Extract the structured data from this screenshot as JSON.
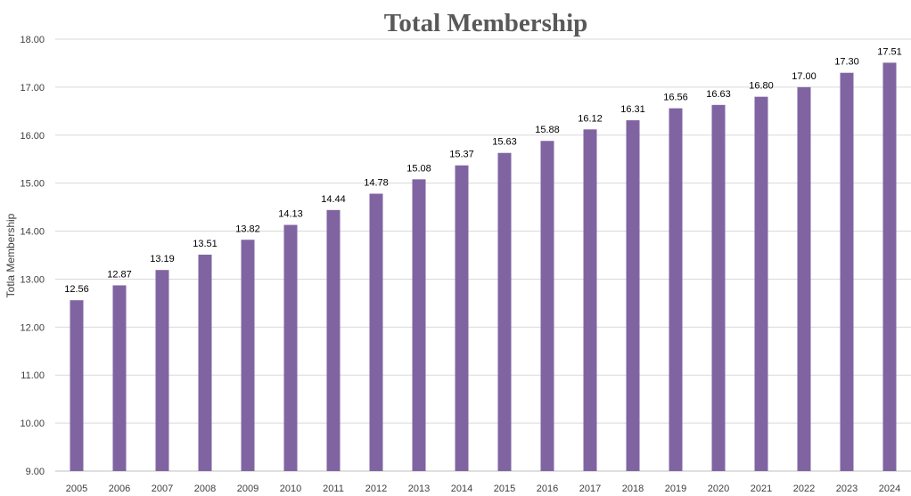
{
  "chart_data": {
    "type": "bar",
    "title": "Total Membership",
    "xlabel": "",
    "ylabel": "Totla Membership",
    "categories": [
      "2005",
      "2006",
      "2007",
      "2008",
      "2009",
      "2010",
      "2011",
      "2012",
      "2013",
      "2014",
      "2015",
      "2016",
      "2017",
      "2018",
      "2019",
      "2020",
      "2021",
      "2022",
      "2023",
      "2024"
    ],
    "values": [
      12.56,
      12.87,
      13.19,
      13.51,
      13.82,
      14.13,
      14.44,
      14.78,
      15.08,
      15.37,
      15.63,
      15.88,
      16.12,
      16.31,
      16.56,
      16.63,
      16.8,
      17.0,
      17.3,
      17.51
    ],
    "data_labels": [
      "12.56",
      "12.87",
      "13.19",
      "13.51",
      "13.82",
      "14.13",
      "14.44",
      "14.78",
      "15.08",
      "15.37",
      "15.63",
      "15.88",
      "16.12",
      "16.31",
      "16.56",
      "16.63",
      "16.80",
      "17.00",
      "17.30",
      "17.51"
    ],
    "ylim": [
      9,
      18
    ],
    "yticks": [
      "9.00",
      "10.00",
      "11.00",
      "12.00",
      "13.00",
      "14.00",
      "15.00",
      "16.00",
      "17.00",
      "18.00"
    ],
    "grid": true,
    "legend": "none",
    "bar_color": "#8064a2"
  }
}
